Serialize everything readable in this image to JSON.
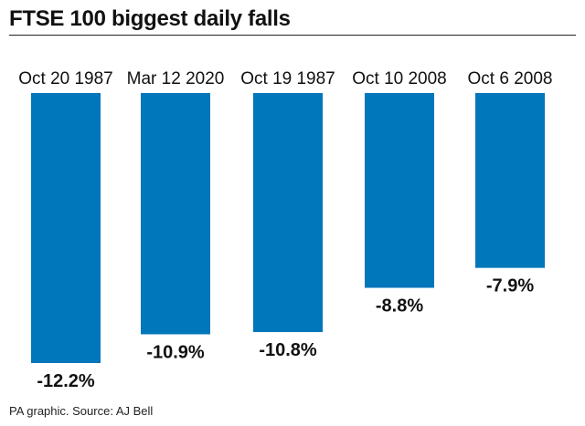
{
  "chart_data": {
    "type": "bar",
    "title": "FTSE 100 biggest daily falls",
    "categories": [
      "Oct 20 1987",
      "Mar 12 2020",
      "Oct 19 1987",
      "Oct 10 2008",
      "Oct 6 2008"
    ],
    "values": [
      -12.2,
      -10.9,
      -10.8,
      -8.8,
      -7.9
    ],
    "value_labels": [
      "-12.2%",
      "-10.9%",
      "-10.8%",
      "-8.8%",
      "-7.9%"
    ],
    "ylim": [
      -12.2,
      0
    ],
    "grid": false,
    "bar_color": "#0077bb",
    "source": "PA graphic. Source: AJ Bell"
  }
}
